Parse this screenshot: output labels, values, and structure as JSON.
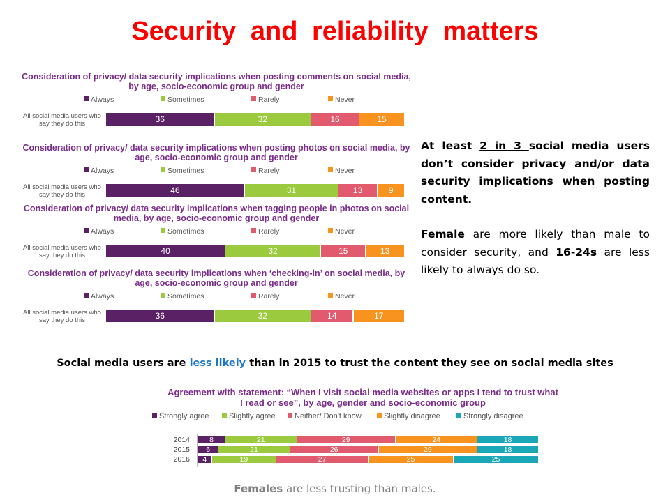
{
  "title": "Security  and  reliability  matters",
  "colors": {
    "always": "#5b2165",
    "sometimes": "#9cca3e",
    "rarely": "#e25a6e",
    "never": "#f7931e",
    "strongly_agree": "#5b2165",
    "slightly_agree": "#9cca3e",
    "neither": "#e25a6e",
    "slightly_disagree": "#f7931e",
    "strongly_disagree": "#1aa7b8",
    "title_red": "#ff0000",
    "chart_title_purple": "#7b2c8b",
    "highlight_blue": "#1f77c8"
  },
  "chart_data": [
    {
      "type": "bar",
      "orientation": "horizontal-stacked",
      "title": "Consideration of privacy/ data security implications when posting comments on social media, by age, socio-economic group and gender",
      "categories": [
        "All social media users who say they do this"
      ],
      "series": [
        {
          "name": "Always",
          "values": [
            36
          ]
        },
        {
          "name": "Sometimes",
          "values": [
            32
          ]
        },
        {
          "name": "Rarely",
          "values": [
            16
          ]
        },
        {
          "name": "Never",
          "values": [
            15
          ]
        }
      ]
    },
    {
      "type": "bar",
      "orientation": "horizontal-stacked",
      "title": "Consideration of privacy/ data security implications when posting photos on social media, by age, socio-economic group and gender",
      "categories": [
        "All social media users who say they do this"
      ],
      "series": [
        {
          "name": "Always",
          "values": [
            46
          ]
        },
        {
          "name": "Sometimes",
          "values": [
            31
          ]
        },
        {
          "name": "Rarely",
          "values": [
            13
          ]
        },
        {
          "name": "Never",
          "values": [
            9
          ]
        }
      ]
    },
    {
      "type": "bar",
      "orientation": "horizontal-stacked",
      "title": "Consideration of privacy/ data security implications when tagging people in photos on social media, by age, socio-economic group and gender",
      "categories": [
        "All social media users who say they do this"
      ],
      "series": [
        {
          "name": "Always",
          "values": [
            40
          ]
        },
        {
          "name": "Sometimes",
          "values": [
            32
          ]
        },
        {
          "name": "Rarely",
          "values": [
            15
          ]
        },
        {
          "name": "Never",
          "values": [
            13
          ]
        }
      ]
    },
    {
      "type": "bar",
      "orientation": "horizontal-stacked",
      "title": "Consideration of privacy/ data security implications when ‘checking-in’ on social media, by age, socio-economic group and gender",
      "categories": [
        "All social media users who say they do this"
      ],
      "series": [
        {
          "name": "Always",
          "values": [
            36
          ]
        },
        {
          "name": "Sometimes",
          "values": [
            32
          ]
        },
        {
          "name": "Rarely",
          "values": [
            14
          ]
        },
        {
          "name": "Never",
          "values": [
            17
          ]
        }
      ]
    },
    {
      "type": "bar",
      "orientation": "horizontal-stacked",
      "title": "Agreement with statement: “When I visit social media websites or apps I tend to trust what I read or see”, by age, gender and socio-economic group",
      "categories": [
        "2014",
        "2015",
        "2016"
      ],
      "series": [
        {
          "name": "Strongly agree",
          "values": [
            8,
            6,
            4
          ]
        },
        {
          "name": "Slightly agree",
          "values": [
            21,
            21,
            19
          ]
        },
        {
          "name": "Neither/ Don't know",
          "values": [
            29,
            26,
            27
          ]
        },
        {
          "name": "Slightly disagree",
          "values": [
            24,
            29,
            25
          ]
        },
        {
          "name": "Strongly disagree",
          "values": [
            18,
            18,
            25
          ]
        }
      ]
    }
  ],
  "right_text": {
    "p1_a": "At least ",
    "p1_b": "2 in 3 ",
    "p1_c": "social media users don’t consider privacy and/or data security implications when posting content.",
    "p2_a": "Female",
    "p2_b": " are more likely than male to consider security, and ",
    "p2_c": "16-24s",
    "p2_d": " are less likely to always do so."
  },
  "trust_heading": {
    "a": "Social media users are ",
    "b": "less likely",
    "c": " than in 2015 to ",
    "d": "trust the content ",
    "e": "they see on social media sites"
  },
  "footnote": {
    "a": "Females",
    "b": " are less trusting than males."
  }
}
